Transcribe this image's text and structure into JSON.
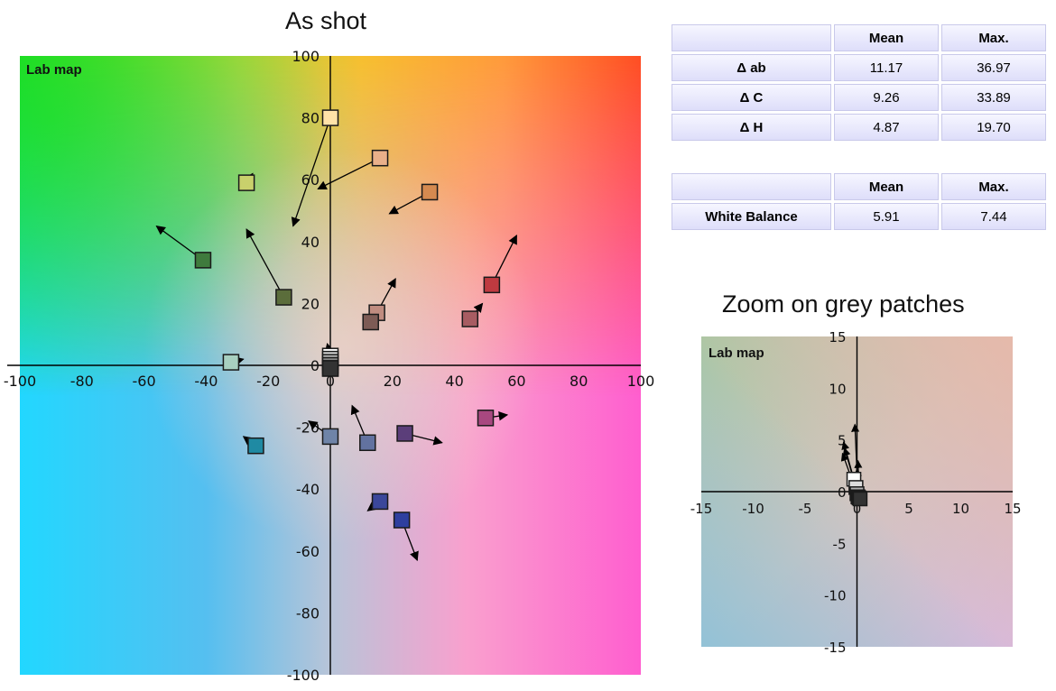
{
  "main_title": "As shot",
  "zoom_title": "Zoom on grey patches",
  "stats_table": {
    "headers": [
      "",
      "Mean",
      "Max."
    ],
    "rows": [
      {
        "label": "Δ ab",
        "mean": "11.17",
        "max": "36.97"
      },
      {
        "label": "Δ C",
        "mean": "9.26",
        "max": "33.89"
      },
      {
        "label": "Δ H",
        "mean": "4.87",
        "max": "19.70"
      }
    ]
  },
  "wb_table": {
    "headers": [
      "",
      "Mean",
      "Max."
    ],
    "rows": [
      {
        "label": "White Balance",
        "mean": "5.91",
        "max": "7.44"
      }
    ]
  },
  "chart_data": [
    {
      "type": "scatter",
      "title": "As shot",
      "map_label": "Lab map",
      "xlim": [
        -100,
        100
      ],
      "ylim": [
        -100,
        100
      ],
      "x_ticks": [
        -100,
        -80,
        -60,
        -40,
        -20,
        0,
        20,
        40,
        60,
        80,
        100
      ],
      "y_ticks": [
        100,
        80,
        60,
        40,
        20,
        0,
        -20,
        -40,
        -60,
        -80,
        -100
      ],
      "grid": false,
      "patches": [
        {
          "x": 0,
          "y": 80,
          "tx": -12,
          "ty": 45,
          "color": "#ffe3a8"
        },
        {
          "x": 16,
          "y": 67,
          "tx": -4,
          "ty": 57,
          "color": "#e9b08a"
        },
        {
          "x": 32,
          "y": 56,
          "tx": 19,
          "ty": 49,
          "color": "#d58a50"
        },
        {
          "x": -27,
          "y": 59,
          "tx": -25,
          "ty": 62,
          "color": "#c9d06c"
        },
        {
          "x": -41,
          "y": 34,
          "tx": -56,
          "ty": 45,
          "color": "#3f7b3d"
        },
        {
          "x": -15,
          "y": 22,
          "tx": -27,
          "ty": 44,
          "color": "#5b6d3b"
        },
        {
          "x": 52,
          "y": 26,
          "tx": 60,
          "ty": 42,
          "color": "#bf3a40"
        },
        {
          "x": 45,
          "y": 15,
          "tx": 49,
          "ty": 20,
          "color": "#a85c62"
        },
        {
          "x": 15,
          "y": 17,
          "tx": 21,
          "ty": 28,
          "color": "#c08c80"
        },
        {
          "x": 13,
          "y": 14,
          "tx": 13,
          "ty": 14,
          "color": "#7d5b55"
        },
        {
          "x": -32,
          "y": 1,
          "tx": -28,
          "ty": 2,
          "color": "#a8d0c0"
        },
        {
          "x": 0,
          "y": 3,
          "tx": -1,
          "ty": 7,
          "color": "#ffffff"
        },
        {
          "x": 0,
          "y": 2,
          "tx": -1,
          "ty": 6,
          "color": "#dddddd"
        },
        {
          "x": 0,
          "y": 1,
          "tx": 0,
          "ty": 5,
          "color": "#b3b3b3"
        },
        {
          "x": 0,
          "y": 0,
          "tx": 0,
          "ty": 4,
          "color": "#888888"
        },
        {
          "x": 0,
          "y": -1,
          "tx": 0,
          "ty": 3,
          "color": "#555555"
        },
        {
          "x": 0,
          "y": -1,
          "tx": 0,
          "ty": 2,
          "color": "#333333"
        },
        {
          "x": 50,
          "y": -17,
          "tx": 57,
          "ty": -16,
          "color": "#a84880"
        },
        {
          "x": 0,
          "y": -23,
          "tx": -7,
          "ty": -18,
          "color": "#6f84a8"
        },
        {
          "x": 12,
          "y": -25,
          "tx": 7,
          "ty": -13,
          "color": "#6272a0"
        },
        {
          "x": 24,
          "y": -22,
          "tx": 36,
          "ty": -25,
          "color": "#5b3e7a"
        },
        {
          "x": -24,
          "y": -26,
          "tx": -28,
          "ty": -23,
          "color": "#1f8aa3"
        },
        {
          "x": 16,
          "y": -44,
          "tx": 12,
          "ty": -47,
          "color": "#3b479a"
        },
        {
          "x": 23,
          "y": -50,
          "tx": 28,
          "ty": -63,
          "color": "#2f3f9f"
        }
      ]
    },
    {
      "type": "scatter",
      "title": "Zoom on grey patches",
      "map_label": "Lab map",
      "xlim": [
        -15,
        15
      ],
      "ylim": [
        -15,
        15
      ],
      "x_ticks": [
        -15,
        -10,
        -5,
        0,
        5,
        10,
        15
      ],
      "y_ticks": [
        15,
        10,
        5,
        0,
        -5,
        -10,
        -15
      ],
      "grid": false,
      "patches": [
        {
          "x": -0.3,
          "y": 1.2,
          "tx": -1.3,
          "ty": 4.8,
          "color": "#ffffff"
        },
        {
          "x": -0.1,
          "y": 0.4,
          "tx": -1.2,
          "ty": 4.2,
          "color": "#dddddd"
        },
        {
          "x": 0,
          "y": -0.2,
          "tx": -1.4,
          "ty": 3.7,
          "color": "#b3b3b3"
        },
        {
          "x": 0.1,
          "y": -0.5,
          "tx": -0.2,
          "ty": 6.5,
          "color": "#888888"
        },
        {
          "x": 0.2,
          "y": -0.6,
          "tx": 0.1,
          "ty": 3.0,
          "color": "#555555"
        },
        {
          "x": 0.3,
          "y": -0.7,
          "tx": 0.0,
          "ty": 2.2,
          "color": "#333333"
        }
      ]
    }
  ]
}
